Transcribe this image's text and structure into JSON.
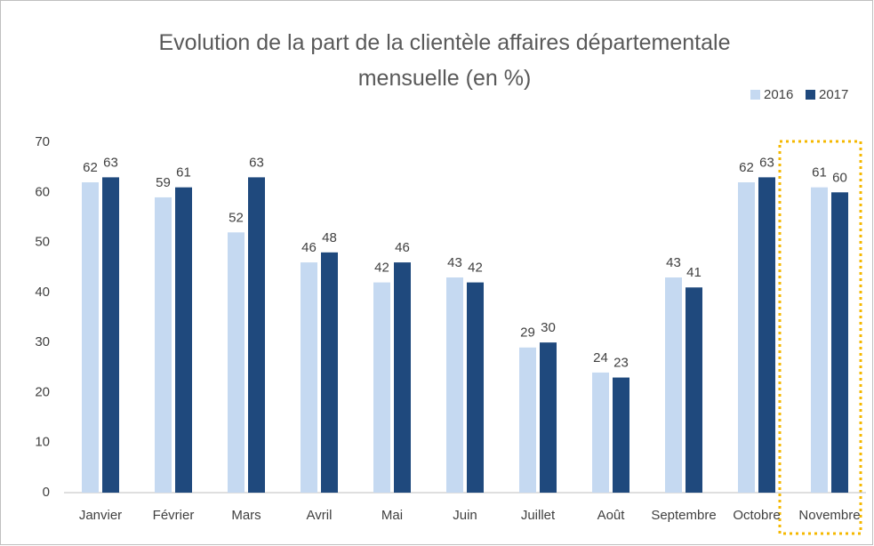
{
  "chart_data": {
    "type": "bar",
    "title": "Evolution de la part de la clientèle affaires départementale mensuelle (en %)",
    "categories": [
      "Janvier",
      "Février",
      "Mars",
      "Avril",
      "Mai",
      "Juin",
      "Juillet",
      "Août",
      "Septembre",
      "Octobre",
      "Novembre"
    ],
    "series": [
      {
        "name": "2016",
        "color": "#c5d9f1",
        "values": [
          62,
          59,
          52,
          46,
          42,
          43,
          29,
          24,
          43,
          62,
          61
        ]
      },
      {
        "name": "2017",
        "color": "#1f497d",
        "values": [
          63,
          61,
          63,
          48,
          46,
          42,
          30,
          23,
          41,
          63,
          60
        ]
      }
    ],
    "ylim": [
      0,
      70
    ],
    "yticks": [
      0,
      10,
      20,
      30,
      40,
      50,
      60,
      70
    ],
    "grid": false,
    "legend": "top-right"
  }
}
